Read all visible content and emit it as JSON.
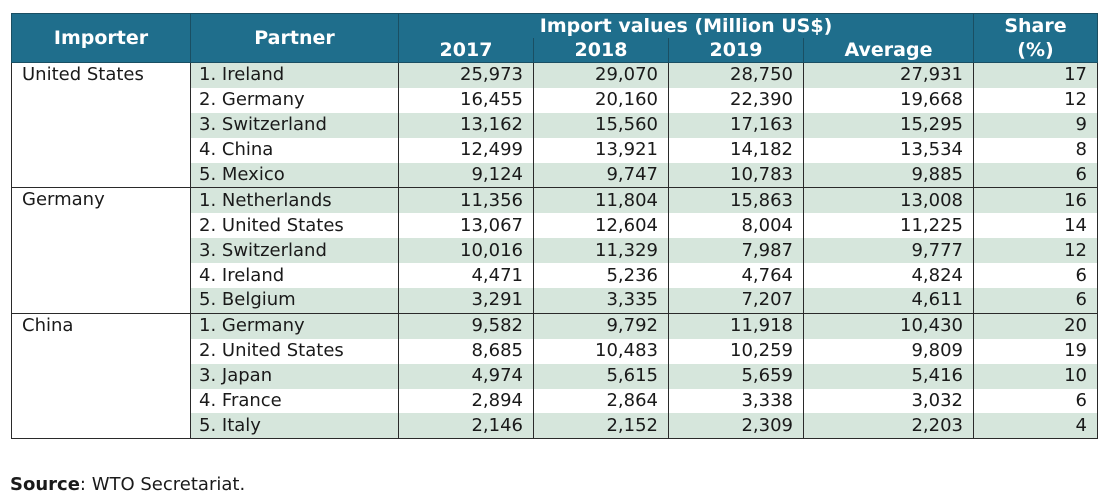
{
  "header": {
    "importer": "Importer",
    "partner": "Partner",
    "import_values": "Import values (Million US$)",
    "years": [
      "2017",
      "2018",
      "2019"
    ],
    "average": "Average",
    "share_line1": "Share",
    "share_line2": "(%)"
  },
  "groups": [
    {
      "importer": "United States",
      "rows": [
        {
          "partner": "1. Ireland",
          "y2017": "25,973",
          "y2018": "29,070",
          "y2019": "28,750",
          "avg": "27,931",
          "share": "17"
        },
        {
          "partner": "2. Germany",
          "y2017": "16,455",
          "y2018": "20,160",
          "y2019": "22,390",
          "avg": "19,668",
          "share": "12"
        },
        {
          "partner": "3. Switzerland",
          "y2017": "13,162",
          "y2018": "15,560",
          "y2019": "17,163",
          "avg": "15,295",
          "share": "9"
        },
        {
          "partner": "4. China",
          "y2017": "12,499",
          "y2018": "13,921",
          "y2019": "14,182",
          "avg": "13,534",
          "share": "8"
        },
        {
          "partner": "5. Mexico",
          "y2017": "9,124",
          "y2018": "9,747",
          "y2019": "10,783",
          "avg": "9,885",
          "share": "6"
        }
      ]
    },
    {
      "importer": "Germany",
      "rows": [
        {
          "partner": "1. Netherlands",
          "y2017": "11,356",
          "y2018": "11,804",
          "y2019": "15,863",
          "avg": "13,008",
          "share": "16"
        },
        {
          "partner": "2. United States",
          "y2017": "13,067",
          "y2018": "12,604",
          "y2019": "8,004",
          "avg": "11,225",
          "share": "14"
        },
        {
          "partner": "3. Switzerland",
          "y2017": "10,016",
          "y2018": "11,329",
          "y2019": "7,987",
          "avg": "9,777",
          "share": "12"
        },
        {
          "partner": "4. Ireland",
          "y2017": "4,471",
          "y2018": "5,236",
          "y2019": "4,764",
          "avg": "4,824",
          "share": "6"
        },
        {
          "partner": "5. Belgium",
          "y2017": "3,291",
          "y2018": "3,335",
          "y2019": "7,207",
          "avg": "4,611",
          "share": "6"
        }
      ]
    },
    {
      "importer": "China",
      "rows": [
        {
          "partner": "1. Germany",
          "y2017": "9,582",
          "y2018": "9,792",
          "y2019": "11,918",
          "avg": "10,430",
          "share": "20"
        },
        {
          "partner": "2. United States",
          "y2017": "8,685",
          "y2018": "10,483",
          "y2019": "10,259",
          "avg": "9,809",
          "share": "19"
        },
        {
          "partner": "3. Japan",
          "y2017": "4,974",
          "y2018": "5,615",
          "y2019": "5,659",
          "avg": "5,416",
          "share": "10"
        },
        {
          "partner": "4. France",
          "y2017": "2,894",
          "y2018": "2,864",
          "y2019": "3,338",
          "avg": "3,032",
          "share": "6"
        },
        {
          "partner": "5. Italy",
          "y2017": "2,146",
          "y2018": "2,152",
          "y2019": "2,309",
          "avg": "2,203",
          "share": "4"
        }
      ]
    }
  ],
  "source": {
    "label": "Source",
    "text": "WTO Secretariat."
  },
  "colors": {
    "header_bg": "#1f6e8c",
    "row_shade": "#d6e6dc"
  }
}
